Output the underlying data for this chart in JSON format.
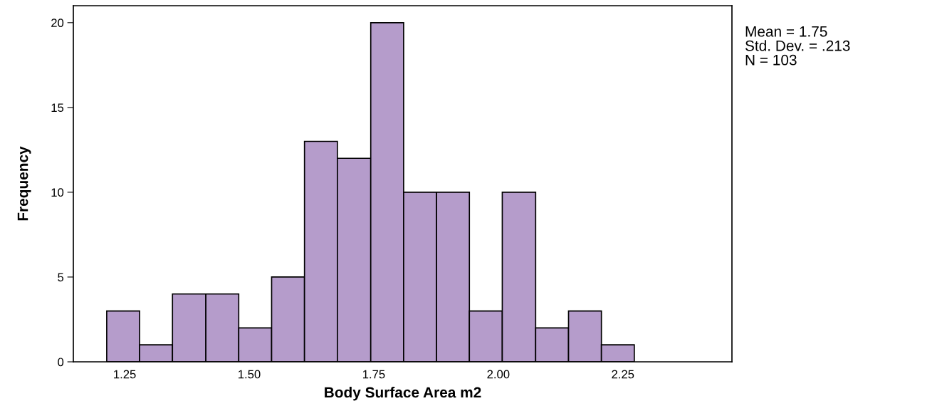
{
  "chart_data": {
    "type": "histogram",
    "xlabel": "Body Surface Area m2",
    "ylabel": "Frequency",
    "bins": [
      1.214,
      1.28,
      1.346,
      1.413,
      1.479,
      1.545,
      1.611,
      1.677,
      1.744,
      1.81,
      1.876,
      1.942,
      2.008,
      2.075,
      2.141,
      2.207,
      2.273
    ],
    "values": [
      3,
      1,
      4,
      4,
      2,
      5,
      13,
      12,
      20,
      10,
      10,
      3,
      10,
      2,
      3,
      1
    ],
    "color": "#b59ccb",
    "xlim": [
      1.147,
      2.469
    ],
    "xticks": [
      {
        "value": 1.25,
        "label": "1.25"
      },
      {
        "value": 1.5,
        "label": "1.50"
      },
      {
        "value": 1.75,
        "label": "1.75"
      },
      {
        "value": 2.0,
        "label": "2.00"
      },
      {
        "value": 2.25,
        "label": "2.25"
      }
    ],
    "ylim": [
      0,
      21
    ],
    "yticks": [
      0,
      5,
      10,
      15,
      20
    ],
    "grid": false,
    "annotations": [
      "Mean = 1.75",
      "Std. Dev. = .213",
      "N = 103"
    ]
  }
}
